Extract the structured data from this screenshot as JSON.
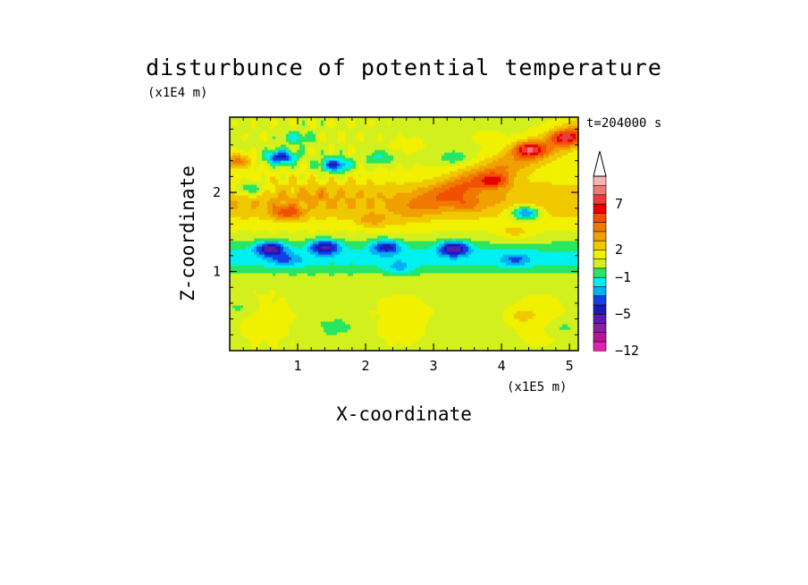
{
  "chart_data": {
    "type": "heatmap",
    "title": "disturbunce of potential temperature",
    "time_label": "t=204000 s",
    "xlabel": "X-coordinate",
    "ylabel": "Z-coordinate",
    "x_unit": "(x1E5 m)",
    "y_unit": "(x1E4 m)",
    "xlim": [
      0,
      5.13
    ],
    "ylim": [
      0,
      2.95
    ],
    "x_ticks": [
      {
        "value": 1,
        "label": "1"
      },
      {
        "value": 2,
        "label": "2"
      },
      {
        "value": 3,
        "label": "3"
      },
      {
        "value": 4,
        "label": "4"
      },
      {
        "value": 5,
        "label": "5"
      }
    ],
    "y_ticks": [
      {
        "value": 1,
        "label": "1"
      },
      {
        "value": 2,
        "label": "2"
      }
    ],
    "colorbar": {
      "extend": "max",
      "levels": [
        -12,
        -10,
        -8,
        -6,
        -5,
        -4,
        -3,
        -2,
        -1,
        0,
        1,
        2,
        3,
        4,
        5,
        6,
        7,
        8,
        9,
        10
      ],
      "colors": [
        "#e81fb4",
        "#b5169a",
        "#8c1ca0",
        "#5a1ab4",
        "#1a1ab4",
        "#1240e6",
        "#00b0f0",
        "#00f0f0",
        "#28e664",
        "#d2f01e",
        "#f0f000",
        "#f0c800",
        "#f0a000",
        "#f07800",
        "#f05000",
        "#e60000",
        "#eb3c3c",
        "#f07878",
        "#f5b4b4"
      ],
      "tick_labels": [
        {
          "value": -12,
          "label": "−12"
        },
        {
          "value": -5,
          "label": "−5"
        },
        {
          "value": -1,
          "label": "−1"
        },
        {
          "value": 2,
          "label": "2"
        },
        {
          "value": 7,
          "label": "7"
        }
      ]
    },
    "features": [
      {
        "x": 0.75,
        "z": 2.45,
        "value": -5.5
      },
      {
        "x": 1.55,
        "z": 2.35,
        "value": -5
      },
      {
        "x": 1.0,
        "z": 2.7,
        "value": -1.5
      },
      {
        "x": 0.3,
        "z": 2.05,
        "value": -3
      },
      {
        "x": 4.35,
        "z": 1.75,
        "value": -5.5
      },
      {
        "x": 0.6,
        "z": 1.3,
        "value": -5
      },
      {
        "x": 1.4,
        "z": 1.32,
        "value": -5
      },
      {
        "x": 2.3,
        "z": 1.32,
        "value": -4
      },
      {
        "x": 3.3,
        "z": 1.3,
        "value": -5.5
      },
      {
        "x": 0.8,
        "z": 1.15,
        "value": -1.5
      },
      {
        "x": 2.5,
        "z": 1.05,
        "value": -1.2
      },
      {
        "x": 4.2,
        "z": 1.15,
        "value": -1.5
      },
      {
        "x": 0.1,
        "z": 2.4,
        "value": 5
      },
      {
        "x": 0.85,
        "z": 1.75,
        "value": 5
      },
      {
        "x": 2.1,
        "z": 1.65,
        "value": 3
      },
      {
        "x": 3.9,
        "z": 2.15,
        "value": 4.5
      },
      {
        "x": 4.4,
        "z": 2.55,
        "value": 6.5
      },
      {
        "x": 4.95,
        "z": 2.7,
        "value": 5.5
      },
      {
        "x": 3.5,
        "z": 1.85,
        "value": 2.5
      },
      {
        "x": 4.2,
        "z": 1.5,
        "value": 2.5
      },
      {
        "x": 1.3,
        "z": 1.98,
        "value": 1.8
      },
      {
        "x": 2.6,
        "z": 2.6,
        "value": 1.8
      },
      {
        "x": 3.8,
        "z": 2.7,
        "value": 1.5
      },
      {
        "x": 2.2,
        "z": 2.45,
        "value": -1.5
      },
      {
        "x": 3.3,
        "z": 2.45,
        "value": -1.2
      },
      {
        "x": 0.7,
        "z": 0.45,
        "value": 1
      },
      {
        "x": 1.8,
        "z": 0.5,
        "value": 1.3
      },
      {
        "x": 3.0,
        "z": 0.5,
        "value": 1
      },
      {
        "x": 4.3,
        "z": 0.45,
        "value": 2.5
      },
      {
        "x": 1.55,
        "z": 0.3,
        "value": -0.5
      },
      {
        "x": 4.9,
        "z": 0.3,
        "value": -0.5
      },
      {
        "x": 0.15,
        "z": 0.55,
        "value": -0.5
      }
    ]
  }
}
